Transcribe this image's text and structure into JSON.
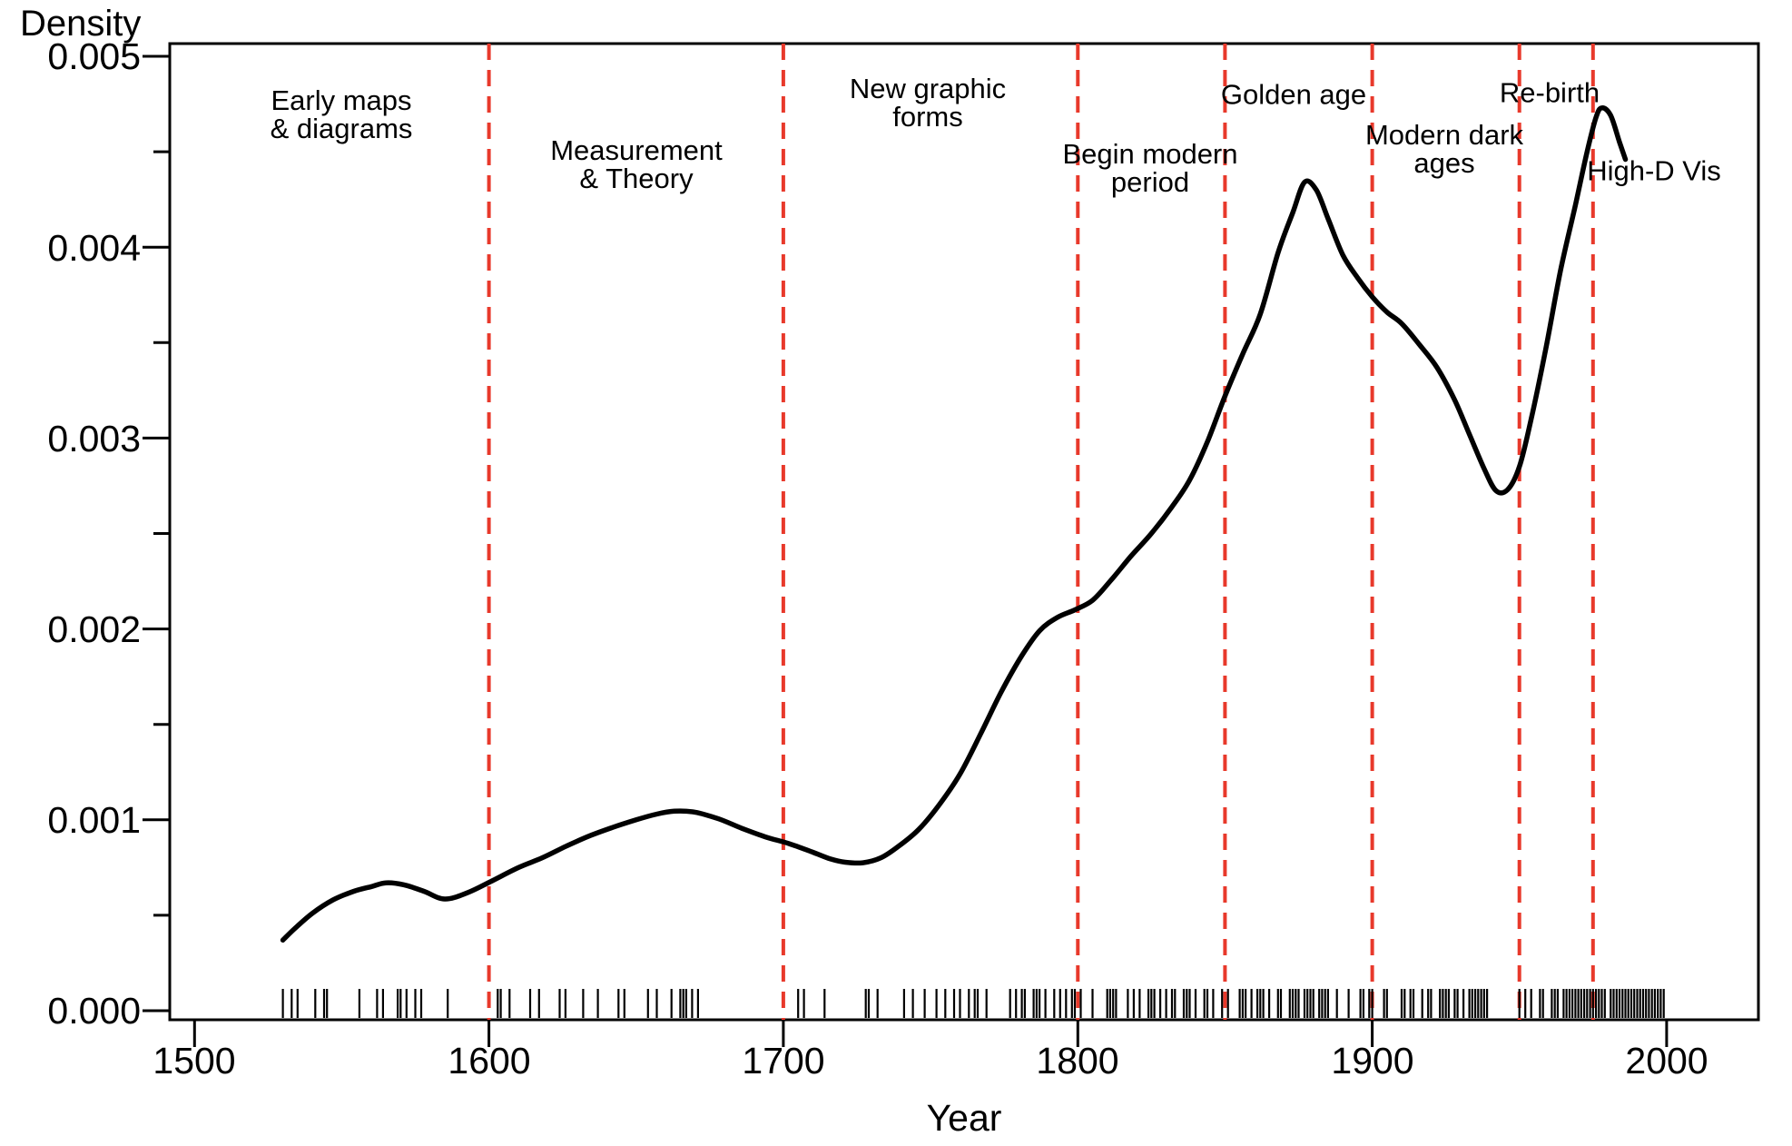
{
  "chart_data": {
    "type": "line",
    "subtype": "kernel-density-with-rug",
    "title": "",
    "xlabel": "Year",
    "ylabel": "Density",
    "xlim": [
      1492,
      2032
    ],
    "ylim": [
      0,
      0.005
    ],
    "grid": false,
    "legend": false,
    "colors": {
      "curve": "#000000",
      "boundary": "#e8392b",
      "text": "#000000",
      "background": "#ffffff"
    },
    "x_ticks": [
      1500,
      1600,
      1700,
      1800,
      1900,
      2000
    ],
    "x_tick_labels": [
      "1500",
      "1600",
      "1700",
      "1800",
      "1900",
      "2000"
    ],
    "y_ticks": [
      0,
      0.001,
      0.002,
      0.003,
      0.004,
      0.005
    ],
    "y_tick_labels": [
      "0.000",
      "0.001",
      "0.002",
      "0.003",
      "0.004",
      "0.005"
    ],
    "y_minor_ticks": [
      0.0005,
      0.0015,
      0.0025,
      0.0035,
      0.0045
    ],
    "era_boundaries": [
      1600,
      1700,
      1800,
      1850,
      1900,
      1950,
      1975
    ],
    "annotations": [
      {
        "text": "Early maps\n& diagrams"
      },
      {
        "text": "Measurement\n& Theory"
      },
      {
        "text": "New graphic\nforms"
      },
      {
        "text": "Begin modern\nperiod"
      },
      {
        "text": "Golden age"
      },
      {
        "text": "Modern dark\nages"
      },
      {
        "text": "Re-birth"
      },
      {
        "text": "High-D Vis"
      }
    ],
    "x": [
      1530,
      1534,
      1540,
      1547,
      1554,
      1560,
      1565,
      1571,
      1578,
      1585,
      1593,
      1601,
      1610,
      1618,
      1626,
      1634,
      1642,
      1650,
      1657,
      1663,
      1670,
      1678,
      1686,
      1694,
      1702,
      1710,
      1716,
      1721,
      1727,
      1733,
      1739,
      1746,
      1753,
      1760,
      1767,
      1774,
      1781,
      1787,
      1793,
      1799,
      1805,
      1811,
      1818,
      1825,
      1832,
      1838,
      1844,
      1850,
      1856,
      1862,
      1868,
      1873,
      1877,
      1881,
      1885,
      1890,
      1895,
      1900,
      1905,
      1910,
      1916,
      1922,
      1928,
      1933,
      1938,
      1942,
      1946,
      1950,
      1954,
      1959,
      1964,
      1969,
      1973,
      1976,
      1978,
      1981,
      1984,
      1986
    ],
    "y": [
      0.00037,
      0.00043,
      0.00051,
      0.00058,
      0.000625,
      0.00065,
      0.00067,
      0.00066,
      0.000625,
      0.000585,
      0.00062,
      0.00068,
      0.00075,
      0.0008,
      0.00086,
      0.000915,
      0.00096,
      0.001,
      0.00103,
      0.001045,
      0.00104,
      0.001005,
      0.000955,
      0.00091,
      0.000875,
      0.00083,
      0.000795,
      0.000778,
      0.000775,
      0.0008,
      0.00086,
      0.00095,
      0.00108,
      0.00124,
      0.00145,
      0.00167,
      0.00186,
      0.00199,
      0.00206,
      0.0021,
      0.00215,
      0.00225,
      0.00238,
      0.0025,
      0.00264,
      0.00278,
      0.00298,
      0.00322,
      0.00344,
      0.00365,
      0.00397,
      0.00418,
      0.00434,
      0.0043,
      0.00415,
      0.00396,
      0.00384,
      0.00374,
      0.00366,
      0.0036,
      0.00349,
      0.00337,
      0.0032,
      0.00302,
      0.00284,
      0.002725,
      0.00273,
      0.00285,
      0.0031,
      0.00347,
      0.00388,
      0.00422,
      0.0045,
      0.00468,
      0.00473,
      0.00469,
      0.00455,
      0.00446
    ],
    "rug_years": [
      1530,
      1533,
      1535,
      1541,
      1544,
      1545,
      1556,
      1562,
      1564,
      1569,
      1570,
      1572,
      1575,
      1577,
      1586,
      1603,
      1604,
      1607,
      1614,
      1617,
      1624,
      1626,
      1632,
      1637,
      1644,
      1646,
      1654,
      1657,
      1662,
      1665,
      1666,
      1667,
      1669,
      1671,
      1705,
      1707,
      1714,
      1728,
      1729,
      1732,
      1741,
      1744,
      1748,
      1752,
      1755,
      1758,
      1760,
      1763,
      1765,
      1766,
      1769,
      1777,
      1779,
      1781,
      1782,
      1785,
      1786,
      1787,
      1789,
      1792,
      1794,
      1796,
      1798,
      1799,
      1801,
      1805,
      1810,
      1811,
      1812,
      1813,
      1817,
      1819,
      1821,
      1824,
      1825,
      1826,
      1828,
      1830,
      1832,
      1833,
      1836,
      1837,
      1838,
      1840,
      1843,
      1844,
      1846,
      1849,
      1851,
      1855,
      1856,
      1857,
      1859,
      1861,
      1862,
      1863,
      1865,
      1868,
      1869,
      1872,
      1873,
      1874,
      1875,
      1877,
      1878,
      1879,
      1880,
      1882,
      1883,
      1884,
      1885,
      1888,
      1892,
      1896,
      1897,
      1899,
      1900,
      1904,
      1905,
      1910,
      1911,
      1913,
      1914,
      1917,
      1919,
      1920,
      1923,
      1924,
      1925,
      1926,
      1928,
      1929,
      1931,
      1933,
      1934,
      1935,
      1936,
      1937,
      1938,
      1939,
      1950,
      1952,
      1954,
      1957,
      1958,
      1961,
      1962,
      1963,
      1965,
      1966,
      1967,
      1968,
      1969,
      1970,
      1971,
      1972,
      1973,
      1974,
      1975,
      1976,
      1977,
      1978,
      1979,
      1981,
      1982,
      1983,
      1984,
      1985,
      1986,
      1987,
      1988,
      1989,
      1990,
      1991,
      1992,
      1993,
      1994,
      1995,
      1996,
      1997,
      1998,
      1999
    ]
  }
}
